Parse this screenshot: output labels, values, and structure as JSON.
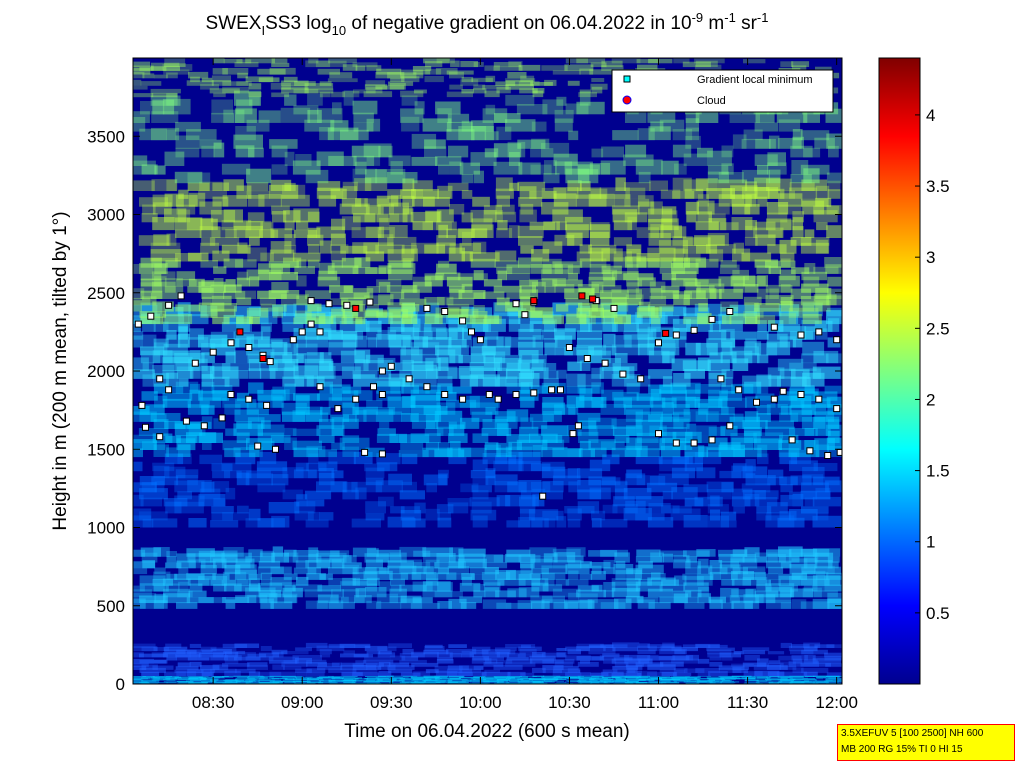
{
  "chart_data": {
    "type": "heatmap",
    "title_parts": {
      "prefix": "SWEX",
      "sub": "I",
      "mid": "SS3 log",
      "log_base": "10",
      "suffix": " of negative gradient on 06.04.2022 in 10",
      "exp1": "-9",
      "unit1": " m",
      "exp2": "-1",
      "unit2": " sr",
      "exp3": "-1"
    },
    "xlabel": "Time on 06.04.2022 (600 s mean)",
    "ylabel": "Height in m (200 m mean, tilted by 1°)",
    "x_ticks": [
      "08:30",
      "09:00",
      "09:30",
      "10:00",
      "10:30",
      "11:00",
      "11:30",
      "12:00"
    ],
    "x_tick_hours": [
      8.5,
      9.0,
      9.5,
      10.0,
      10.5,
      11.0,
      11.5,
      12.0
    ],
    "xlim_hours": [
      8.05,
      12.03
    ],
    "y_ticks": [
      "0",
      "500",
      "1000",
      "1500",
      "2000",
      "2500",
      "3000",
      "3500"
    ],
    "y_tick_values": [
      0,
      500,
      1000,
      1500,
      2000,
      2500,
      3000,
      3500
    ],
    "ylim": [
      0,
      4000
    ],
    "colorbar": {
      "ticks": [
        "0.5",
        "1",
        "1.5",
        "2",
        "2.5",
        "3",
        "3.5",
        "4"
      ],
      "tick_values": [
        0.5,
        1,
        1.5,
        2,
        2.5,
        3,
        3.5,
        4
      ],
      "range": [
        0,
        4.4
      ],
      "colormap": "jet"
    },
    "legend": {
      "position": "top-right",
      "entries": [
        {
          "label": "Gradient local minimum",
          "color": "#00ffff",
          "marker": "square"
        },
        {
          "label": "Cloud",
          "color": "#ff0000",
          "marker": "circle"
        }
      ]
    },
    "gradient_minima": [
      [
        8.08,
        2300
      ],
      [
        8.15,
        2350
      ],
      [
        8.25,
        2420
      ],
      [
        8.32,
        2480
      ],
      [
        8.1,
        1780
      ],
      [
        8.12,
        1640
      ],
      [
        8.2,
        1580
      ],
      [
        8.35,
        1680
      ],
      [
        8.45,
        1650
      ],
      [
        8.55,
        1700
      ],
      [
        8.2,
        1950
      ],
      [
        8.25,
        1880
      ],
      [
        8.4,
        2050
      ],
      [
        8.5,
        2120
      ],
      [
        8.6,
        2180
      ],
      [
        8.7,
        2150
      ],
      [
        8.78,
        2100
      ],
      [
        8.82,
        2060
      ],
      [
        8.6,
        1850
      ],
      [
        8.7,
        1820
      ],
      [
        8.8,
        1780
      ],
      [
        8.75,
        1520
      ],
      [
        8.85,
        1500
      ],
      [
        8.95,
        2200
      ],
      [
        9.0,
        2250
      ],
      [
        9.05,
        2300
      ],
      [
        9.1,
        2250
      ],
      [
        9.05,
        2450
      ],
      [
        9.15,
        2430
      ],
      [
        9.25,
        2420
      ],
      [
        9.38,
        2440
      ],
      [
        9.1,
        1900
      ],
      [
        9.2,
        1760
      ],
      [
        9.3,
        1820
      ],
      [
        9.4,
        1900
      ],
      [
        9.45,
        1850
      ],
      [
        9.35,
        1480
      ],
      [
        9.45,
        1470
      ],
      [
        9.45,
        2000
      ],
      [
        9.5,
        2030
      ],
      [
        9.6,
        1950
      ],
      [
        9.7,
        1900
      ],
      [
        9.8,
        1850
      ],
      [
        9.9,
        1820
      ],
      [
        9.7,
        2400
      ],
      [
        9.8,
        2380
      ],
      [
        9.9,
        2320
      ],
      [
        9.95,
        2250
      ],
      [
        10.0,
        2200
      ],
      [
        10.05,
        1850
      ],
      [
        10.1,
        1820
      ],
      [
        10.2,
        1850
      ],
      [
        10.3,
        1860
      ],
      [
        10.2,
        2430
      ],
      [
        10.25,
        2360
      ],
      [
        10.3,
        2440
      ],
      [
        10.4,
        1880
      ],
      [
        10.45,
        1880
      ],
      [
        10.35,
        1200
      ],
      [
        10.52,
        1600
      ],
      [
        10.55,
        1650
      ],
      [
        10.5,
        2150
      ],
      [
        10.6,
        2080
      ],
      [
        10.7,
        2050
      ],
      [
        10.8,
        1980
      ],
      [
        10.9,
        1950
      ],
      [
        10.65,
        2450
      ],
      [
        10.75,
        2400
      ],
      [
        11.0,
        1600
      ],
      [
        11.1,
        1540
      ],
      [
        11.2,
        1540
      ],
      [
        11.3,
        1560
      ],
      [
        11.4,
        1650
      ],
      [
        11.0,
        2180
      ],
      [
        11.1,
        2230
      ],
      [
        11.2,
        2260
      ],
      [
        11.3,
        2330
      ],
      [
        11.4,
        2380
      ],
      [
        11.35,
        1950
      ],
      [
        11.45,
        1880
      ],
      [
        11.55,
        1800
      ],
      [
        11.65,
        1820
      ],
      [
        11.7,
        1870
      ],
      [
        11.8,
        1850
      ],
      [
        11.9,
        1820
      ],
      [
        12.0,
        1760
      ],
      [
        11.65,
        2280
      ],
      [
        11.8,
        2230
      ],
      [
        11.9,
        2250
      ],
      [
        12.0,
        2200
      ],
      [
        11.75,
        1560
      ],
      [
        11.85,
        1490
      ],
      [
        11.95,
        1460
      ],
      [
        12.02,
        1480
      ]
    ],
    "clouds": [
      [
        8.65,
        2250
      ],
      [
        8.78,
        2080
      ],
      [
        9.3,
        2400
      ],
      [
        10.3,
        2450
      ],
      [
        10.57,
        2480
      ],
      [
        10.63,
        2460
      ],
      [
        11.04,
        2240
      ]
    ]
  },
  "info_box": {
    "line1": "3.5XEFUV 5 [100 2500] NH 600",
    "line2": "MB 200 RG 15% TI 0 HI 15"
  }
}
